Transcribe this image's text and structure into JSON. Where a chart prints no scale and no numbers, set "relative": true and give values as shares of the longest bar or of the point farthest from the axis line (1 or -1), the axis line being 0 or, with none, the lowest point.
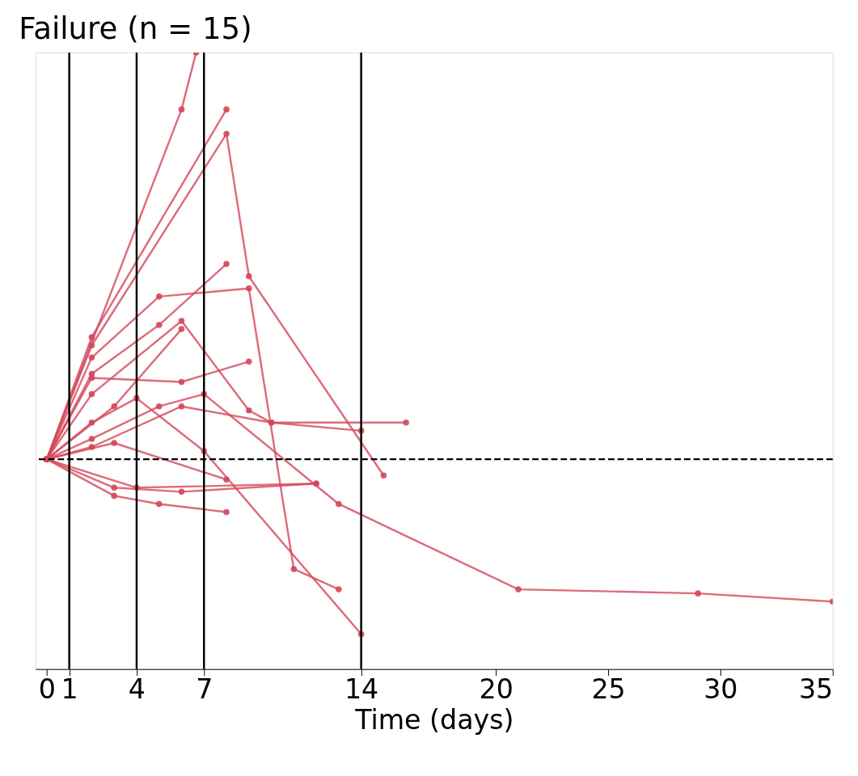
{
  "chart_data": {
    "type": "line",
    "title": "Failure (n = 15)",
    "xlabel": "Time (days)",
    "relative": true,
    "xlim": [
      -0.5,
      35
    ],
    "xticks": [
      0,
      1,
      4,
      7,
      14,
      20,
      25,
      30,
      35
    ],
    "marker": "circle",
    "line_style": "solid",
    "legend": false,
    "grid": false,
    "series": [
      {
        "color": "#d4475a",
        "x": [
          0,
          6,
          6.65
        ],
        "values": [
          0,
          0.86,
          1
        ]
      },
      {
        "color": "#d4475a",
        "x": [
          0,
          2,
          8
        ],
        "values": [
          0,
          0.3,
          0.86
        ]
      },
      {
        "color": "#d4475a",
        "x": [
          0,
          2,
          8,
          9,
          15
        ],
        "values": [
          0,
          0.28,
          0.8,
          0.45,
          -0.04
        ]
      },
      {
        "color": "#d4475a",
        "x": [
          0,
          2,
          5,
          9,
          11,
          13
        ],
        "values": [
          0,
          0.25,
          0.4,
          0.42,
          -0.27,
          -0.32
        ]
      },
      {
        "color": "#d4475a",
        "x": [
          0,
          2,
          5,
          8
        ],
        "values": [
          0,
          0.21,
          0.33,
          0.48
        ]
      },
      {
        "color": "#d4475a",
        "x": [
          0,
          2,
          6,
          9
        ],
        "values": [
          0,
          0.2,
          0.19,
          0.24
        ]
      },
      {
        "color": "#d4475a",
        "x": [
          0,
          2,
          6,
          9,
          10,
          16
        ],
        "values": [
          0,
          0.16,
          0.34,
          0.12,
          0.09,
          0.09
        ]
      },
      {
        "color": "#d4475a",
        "x": [
          0,
          2,
          4,
          7,
          14
        ],
        "values": [
          0,
          0.09,
          0.15,
          0.02,
          -0.43
        ]
      },
      {
        "color": "#d4475a",
        "x": [
          0,
          2,
          5,
          7,
          13,
          21,
          29,
          35
        ],
        "values": [
          0,
          0.05,
          0.13,
          0.16,
          -0.11,
          -0.32,
          -0.33,
          -0.35
        ]
      },
      {
        "color": "#d4475a",
        "x": [
          0,
          2,
          6,
          10,
          14
        ],
        "values": [
          0,
          0.03,
          0.13,
          0.09,
          0.07
        ]
      },
      {
        "color": "#d4475a",
        "x": [
          0,
          3,
          8
        ],
        "values": [
          0,
          0.04,
          -0.05
        ]
      },
      {
        "color": "#d4475a",
        "x": [
          0,
          3,
          6,
          12
        ],
        "values": [
          0,
          -0.07,
          -0.08,
          -0.06
        ]
      },
      {
        "color": "#d4475a",
        "x": [
          0,
          3,
          5,
          8
        ],
        "values": [
          0,
          -0.09,
          -0.11,
          -0.13
        ]
      },
      {
        "color": "#d4475a",
        "x": [
          0,
          4,
          12
        ],
        "values": [
          0,
          -0.07,
          -0.06
        ]
      },
      {
        "color": "#d4475a",
        "x": [
          0,
          3,
          6
        ],
        "values": [
          0,
          0.13,
          0.32
        ]
      }
    ],
    "ref_lines": [
      {
        "axis": "x",
        "value": 1,
        "color": "#000000",
        "line_style": "solid"
      },
      {
        "axis": "x",
        "value": 4,
        "color": "#000000",
        "line_style": "solid"
      },
      {
        "axis": "x",
        "value": 7,
        "color": "#000000",
        "line_style": "solid"
      },
      {
        "axis": "x",
        "value": 14,
        "color": "#000000",
        "line_style": "solid"
      },
      {
        "axis": "y",
        "value": 0,
        "color": "#000000",
        "line_style": "dashed"
      }
    ]
  }
}
